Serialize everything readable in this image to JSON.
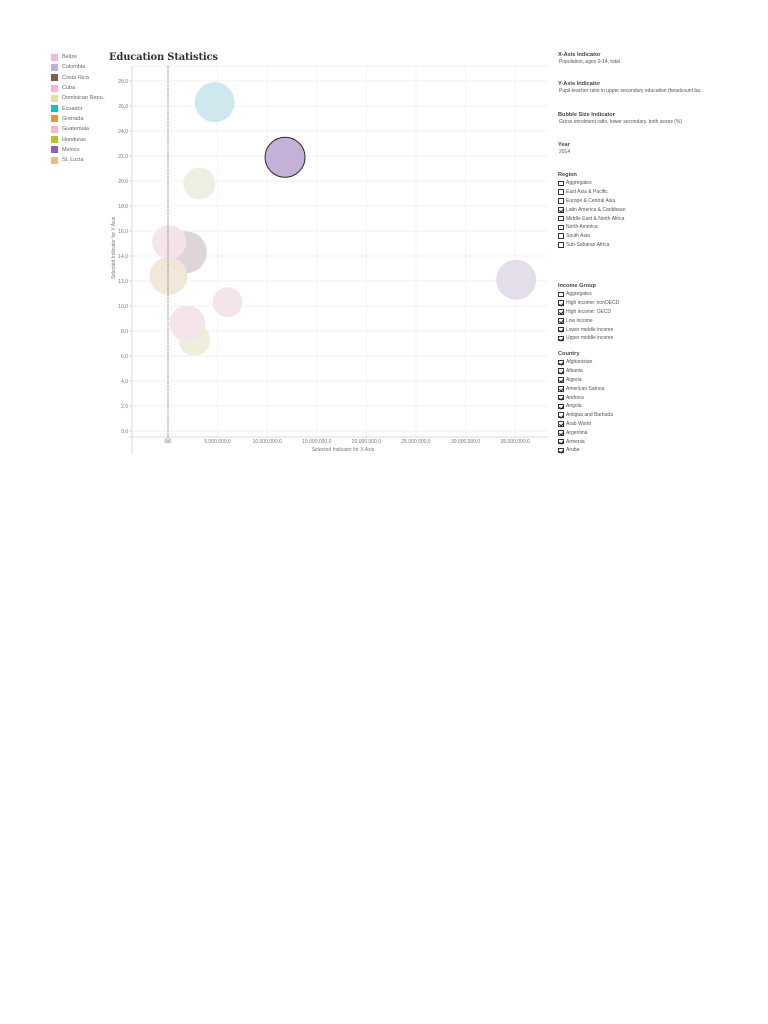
{
  "title": "Education Statistics",
  "legend": [
    {
      "label": "Belize",
      "color": "#f4b4d2"
    },
    {
      "label": "Colombia",
      "color": "#c4b1da"
    },
    {
      "label": "Costa Rica",
      "color": "#8a5a4e"
    },
    {
      "label": "Cuba",
      "color": "#f4b4d2"
    },
    {
      "label": "Dominican Repu..",
      "color": "#dfe0a8"
    },
    {
      "label": "Ecuador",
      "color": "#1fb8c8"
    },
    {
      "label": "Grenada",
      "color": "#e09a3a"
    },
    {
      "label": "Guatemala",
      "color": "#f4b4d2"
    },
    {
      "label": "Honduras",
      "color": "#b5c234"
    },
    {
      "label": "Mexico",
      "color": "#8e5fbd"
    },
    {
      "label": "St. Lucia",
      "color": "#f6b87e"
    }
  ],
  "panel": {
    "x_axis": {
      "heading": "X-Axis Indicator",
      "value": "Population, ages 0-14, total"
    },
    "y_axis": {
      "heading": "Y-Axis Indicator",
      "value": "Pupil-teacher ratio in upper secondary education (headcount ba.."
    },
    "bubble": {
      "heading": "Bubble Size Indicator",
      "value": "Gross enrolment ratio, lower secondary, both sexes (%)"
    },
    "year": {
      "heading": "Year",
      "value": "2014"
    },
    "region": {
      "heading": "Region",
      "items": [
        {
          "label": "Aggregates",
          "checked": false
        },
        {
          "label": "East Asia & Pacific",
          "checked": false
        },
        {
          "label": "Europe & Central Asia",
          "checked": false
        },
        {
          "label": "Latin America & Caribbean",
          "checked": true
        },
        {
          "label": "Middle East & North Africa",
          "checked": false
        },
        {
          "label": "North America",
          "checked": false
        },
        {
          "label": "South Asia",
          "checked": false
        },
        {
          "label": "Sub-Saharan Africa",
          "checked": false
        }
      ]
    },
    "income": {
      "heading": "Income Group",
      "items": [
        {
          "label": "Aggregates",
          "checked": false
        },
        {
          "label": "High income: nonOECD",
          "checked": true
        },
        {
          "label": "High income: OECD",
          "checked": true
        },
        {
          "label": "Low income",
          "checked": true
        },
        {
          "label": "Lower middle income",
          "checked": true
        },
        {
          "label": "Upper middle income",
          "checked": true
        }
      ]
    },
    "country": {
      "heading": "Country",
      "items": [
        {
          "label": "Afghanistan",
          "checked": true
        },
        {
          "label": "Albania",
          "checked": true
        },
        {
          "label": "Algeria",
          "checked": true
        },
        {
          "label": "American Samoa",
          "checked": true
        },
        {
          "label": "Andorra",
          "checked": true
        },
        {
          "label": "Angola",
          "checked": true
        },
        {
          "label": "Antigua and Barbuda",
          "checked": true
        },
        {
          "label": "Arab World",
          "checked": true
        },
        {
          "label": "Argentina",
          "checked": true
        },
        {
          "label": "Armenia",
          "checked": true
        },
        {
          "label": "Aruba",
          "checked": true
        }
      ]
    }
  },
  "chart_data": {
    "type": "scatter",
    "title": "Education Statistics",
    "xlabel": "Selected Indicator for X Axis",
    "ylabel": "Selected Indicator for Y Axis",
    "xlim": [
      -3700000,
      37500000
    ],
    "ylim": [
      0,
      29
    ],
    "x_ticks": [
      "0,0",
      "5.000.000,0",
      "10.000.000,0",
      "15.000.000,0",
      "20.000.000,0",
      "25.000.000,0",
      "30.000.000,0",
      "35.000.000,0"
    ],
    "x_tick_values": [
      0,
      5000000,
      10000000,
      15000000,
      20000000,
      25000000,
      30000000,
      35000000
    ],
    "y_ticks": [
      "0,0",
      "2,0",
      "4,0",
      "6,0",
      "8,0",
      "10,0",
      "12,0",
      "14,0",
      "16,0",
      "18,0",
      "20,0",
      "22,0",
      "24,0",
      "26,0",
      "28,0"
    ],
    "y_tick_values": [
      0,
      2,
      4,
      6,
      8,
      10,
      12,
      14,
      16,
      18,
      20,
      22,
      24,
      26,
      28
    ],
    "grid": true,
    "reference_line_x": 0,
    "points": [
      {
        "country": "Ecuador",
        "x": 4700000,
        "y": 26.3,
        "size": 20,
        "color": "#cbe7ec"
      },
      {
        "country": "Mexico",
        "x": 11800000,
        "y": 21.9,
        "size": 20,
        "color": "#c2acd6",
        "highlighted": true
      },
      {
        "country": "Dominican Republic",
        "x": 3150000,
        "y": 19.8,
        "size": 16,
        "color": "#eeeedf"
      },
      {
        "country": "Cuba",
        "x": 1800000,
        "y": 14.3,
        "size": 21,
        "color": "#ddd3d6"
      },
      {
        "country": "St. Lucia",
        "x": 40000,
        "y": 12.4,
        "size": 19,
        "color": "#f2e6d8"
      },
      {
        "country": "Belize",
        "x": 120000,
        "y": 15.1,
        "size": 17,
        "color": "#f3e4ea"
      },
      {
        "country": "Guatemala",
        "x": 6000000,
        "y": 10.3,
        "size": 15,
        "color": "#f4e4ea"
      },
      {
        "country": "Honduras",
        "x": 2650000,
        "y": 7.3,
        "size": 16,
        "color": "#eceed8"
      },
      {
        "country": "Grenada",
        "x": 1950000,
        "y": 8.6,
        "size": 18,
        "color": "#f4e4ea"
      },
      {
        "country": "Colombia",
        "x": 35100000,
        "y": 12.1,
        "size": 20,
        "color": "#e3dbe9"
      }
    ]
  }
}
